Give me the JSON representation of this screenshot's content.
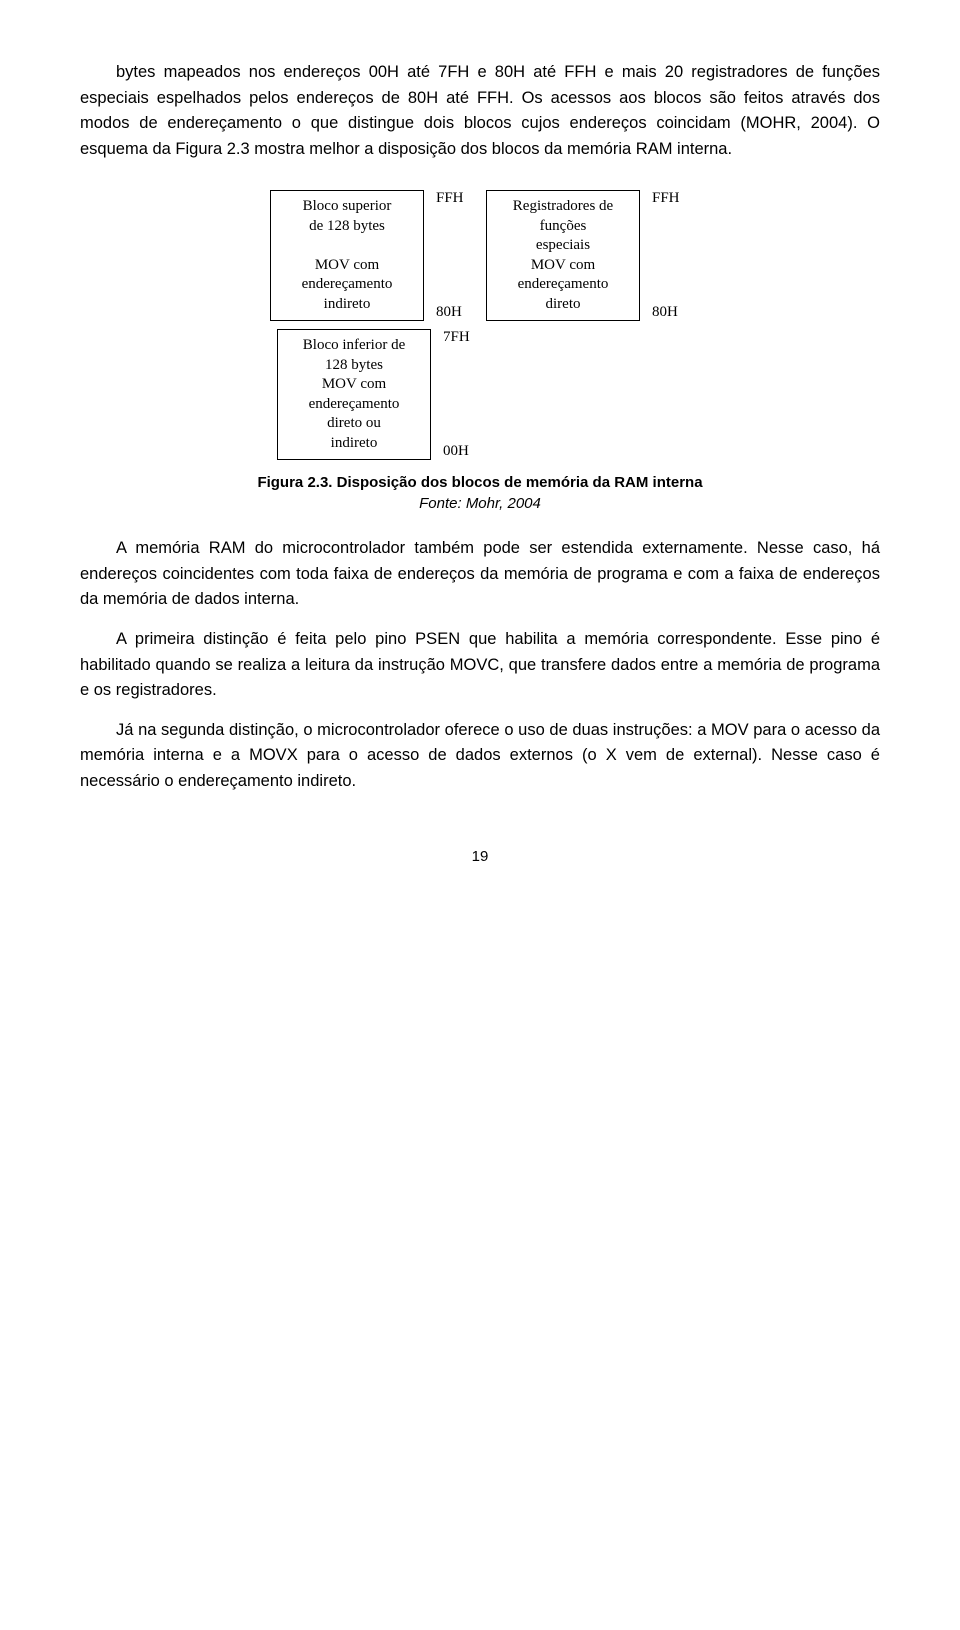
{
  "paragraphs": {
    "p1": "bytes mapeados nos endereços 00H até 7FH e 80H até FFH e mais 20 registradores de funções especiais espelhados pelos endereços de 80H até FFH. Os acessos aos blocos são feitos através dos modos de endereçamento o que distingue dois blocos cujos endereços coincidam (MOHR, 2004). O esquema da Figura 2.3 mostra melhor a disposição dos blocos da memória RAM interna.",
    "p2_a": "A memória RAM do microcontrolador também pode ser estendida externamente. Nesse caso, há endereços coincidentes com toda faixa de endereços da memória de programa e com a faixa de endereços da memória de dados interna.",
    "p2_b": "A primeira distinção é feita pelo pino PSEN que habilita a memória correspondente. Esse pino é habilitado quando se realiza a leitura da instrução MOVC, que transfere dados entre a memória de programa e os registradores.",
    "p2_c": "Já na segunda distinção, o microcontrolador oferece o uso de duas instruções: a MOV para o acesso da memória interna e a MOVX para o acesso de dados externos (o X vem de external). Nesse caso é necessário o endereçamento indireto."
  },
  "figure": {
    "boxes": {
      "upper128": "Bloco superior\nde 128 bytes\n\nMOV com\nendereçamento\nindireto",
      "sfr": "Registradores de\nfunções\nespeciais\nMOV com\nendereçamento\ndireto",
      "lower128": "Bloco inferior de\n128 bytes\nMOV com\nendereçamento\ndireto ou\nindireto"
    },
    "addrs": {
      "upper_hi": "FFH",
      "upper_lo": "80H",
      "sfr_hi": "FFH",
      "sfr_lo": "80H",
      "lower_hi": "7FH",
      "lower_lo": "00H"
    },
    "caption_title": "Figura 2.3. Disposição dos blocos de memória da RAM interna",
    "caption_src": "Fonte: Mohr, 2004"
  },
  "page_number": "19",
  "colors": {
    "text": "#000000",
    "bg": "#ffffff",
    "border": "#000000"
  },
  "typography": {
    "body_font": "Arial",
    "body_size_pt": 12,
    "box_font": "Times New Roman",
    "box_size_pt": 11
  }
}
